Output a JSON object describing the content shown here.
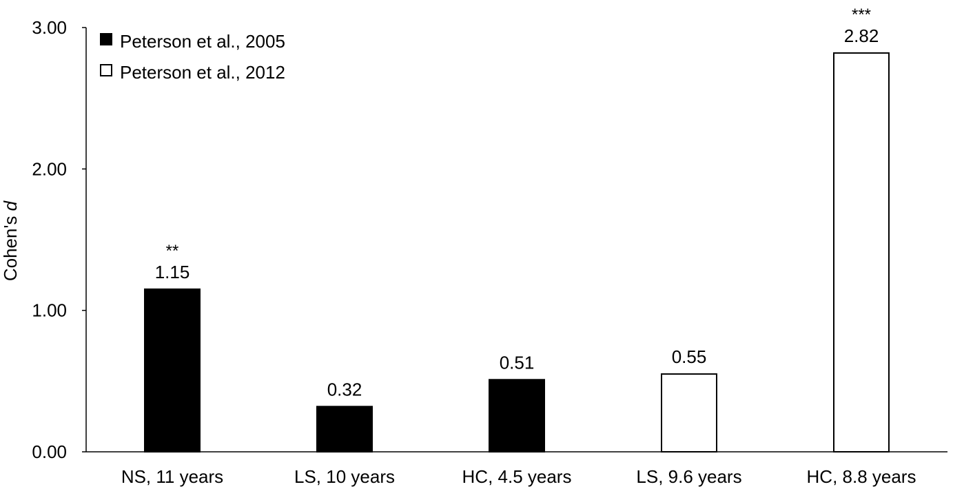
{
  "chart_data": {
    "type": "bar",
    "title": "",
    "xlabel": "",
    "ylabel": "Cohen's ",
    "ylabel_italic": "d",
    "ylim": [
      0,
      3
    ],
    "yticks": [
      "0.00",
      "1.00",
      "2.00",
      "3.00"
    ],
    "grid": false,
    "legend_position": "top-left",
    "categories": [
      "NS, 11 years",
      "LS, 10 years",
      "HC, 4.5 years",
      "LS, 9.6 years",
      "HC, 8.8 years"
    ],
    "values": [
      1.15,
      0.32,
      0.51,
      0.55,
      2.82
    ],
    "value_labels": [
      "1.15",
      "0.32",
      "0.51",
      "0.55",
      "2.82"
    ],
    "significance": [
      "**",
      "",
      "",
      "",
      "***"
    ],
    "series_index": [
      0,
      0,
      0,
      1,
      1
    ],
    "series": [
      {
        "name": "Peterson et al., 2005",
        "fill": "#000000"
      },
      {
        "name": "Peterson et al., 2012",
        "fill": "#ffffff"
      }
    ]
  }
}
